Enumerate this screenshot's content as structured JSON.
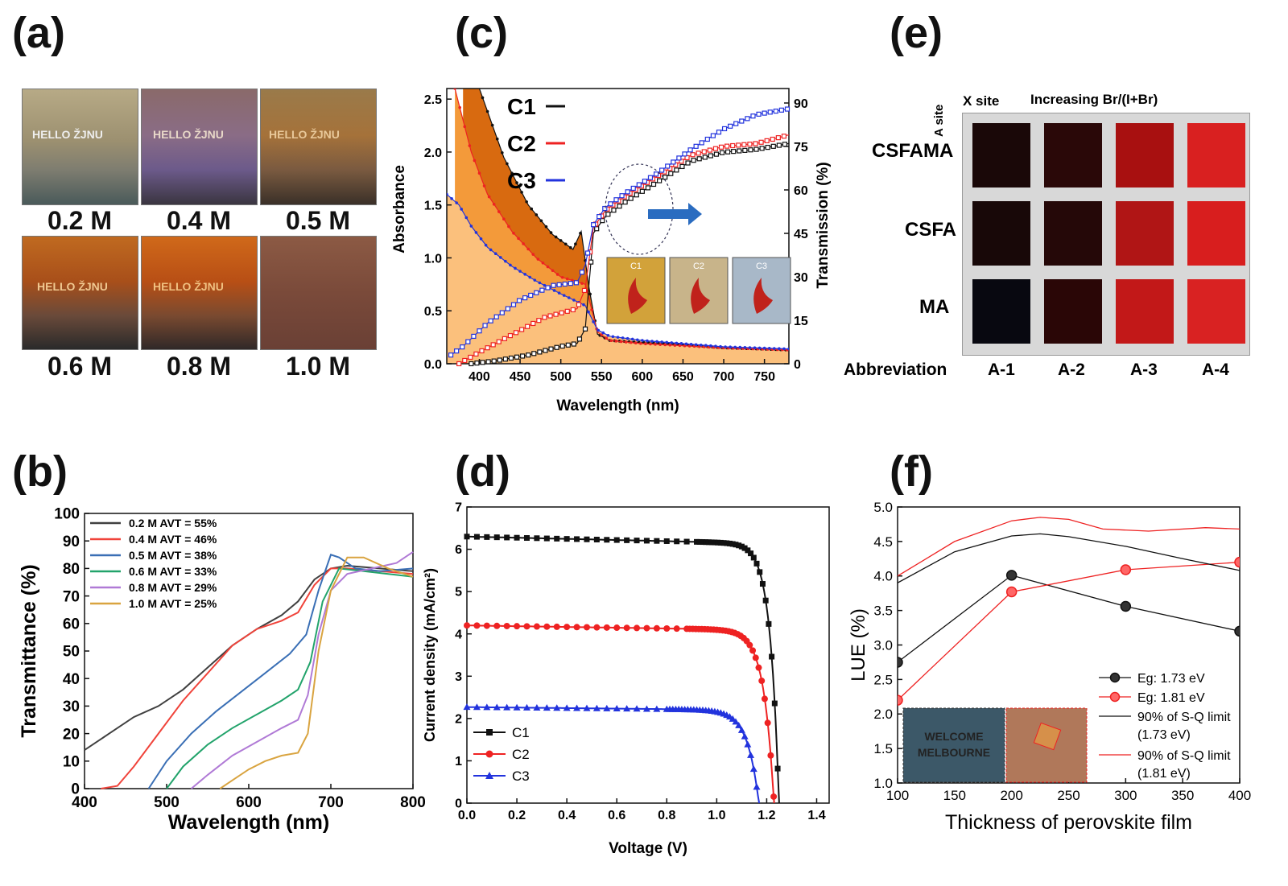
{
  "panels": {
    "a": "(a)",
    "b": "(b)",
    "c": "(c)",
    "d": "(d)",
    "e": "(e)",
    "f": "(f)"
  },
  "panel_a": {
    "labels": [
      "0.2 M",
      "0.4 M",
      "0.5 M",
      "0.6 M",
      "0.8 M",
      "1.0 M"
    ],
    "photo_text": "HELLO ŽJNU"
  },
  "panel_e": {
    "x_site_label": "X site",
    "a_site_label": "A site",
    "increasing_label": "Increasing Br/(I+Br)",
    "rows": [
      "CSFAMA",
      "CSFA",
      "MA"
    ],
    "abbreviation_label": "Abbreviation",
    "columns": [
      "A-1",
      "A-2",
      "A-3",
      "A-4"
    ]
  },
  "colors": {
    "black": "#111111",
    "red": "#ee2222",
    "blue": "#2233dd",
    "orange_light": "#fbc07c",
    "orange_mid": "#f39a3a",
    "orange_dark": "#d86a10",
    "b_0.2": "#404040",
    "b_0.4": "#f0433a",
    "b_0.5": "#3a6fb5",
    "b_0.6": "#22a36b",
    "b_0.8": "#b07ad6",
    "b_1.0": "#d9a440"
  },
  "chart_data": [
    {
      "id": "b",
      "type": "line",
      "xlabel": "Wavelength (nm)",
      "ylabel": "Transmittance (%)",
      "xlim": [
        400,
        800
      ],
      "ylim": [
        0,
        100
      ],
      "xticks": [
        400,
        500,
        600,
        700,
        800
      ],
      "yticks": [
        0,
        10,
        20,
        30,
        40,
        50,
        60,
        70,
        80,
        90,
        100
      ],
      "legend_position": "top-left",
      "series": [
        {
          "name": "0.2 M AVT = 55%",
          "x": [
            400,
            430,
            460,
            490,
            520,
            550,
            580,
            610,
            640,
            660,
            680,
            700,
            720,
            760,
            800
          ],
          "y": [
            14,
            20,
            26,
            30,
            36,
            44,
            52,
            58,
            63,
            68,
            76,
            80,
            81,
            80,
            79
          ]
        },
        {
          "name": "0.4 M AVT = 46%",
          "x": [
            420,
            440,
            460,
            490,
            520,
            550,
            580,
            610,
            640,
            660,
            680,
            700,
            720,
            760,
            800
          ],
          "y": [
            0,
            1,
            8,
            20,
            32,
            42,
            52,
            58,
            61,
            64,
            74,
            80,
            80,
            79,
            78
          ]
        },
        {
          "name": "0.5 M AVT = 38%",
          "x": [
            478,
            500,
            530,
            560,
            590,
            620,
            650,
            670,
            685,
            700,
            710,
            730,
            760,
            800
          ],
          "y": [
            0,
            10,
            20,
            28,
            35,
            42,
            49,
            56,
            72,
            85,
            84,
            80,
            79,
            80
          ]
        },
        {
          "name": "0.6 M AVT = 33%",
          "x": [
            500,
            520,
            550,
            580,
            610,
            640,
            660,
            675,
            690,
            710,
            740,
            770,
            800
          ],
          "y": [
            0,
            8,
            16,
            22,
            27,
            32,
            36,
            46,
            68,
            80,
            79,
            78,
            77
          ]
        },
        {
          "name": "0.8 M AVT = 29%",
          "x": [
            530,
            550,
            580,
            610,
            640,
            660,
            672,
            685,
            700,
            720,
            750,
            780,
            800
          ],
          "y": [
            0,
            5,
            12,
            17,
            22,
            25,
            34,
            56,
            72,
            78,
            80,
            82,
            86
          ]
        },
        {
          "name": "1.0 M AVT = 25%",
          "x": [
            565,
            580,
            600,
            620,
            640,
            660,
            672,
            685,
            700,
            720,
            740,
            770,
            800
          ],
          "y": [
            0,
            3,
            7,
            10,
            12,
            13,
            20,
            50,
            72,
            84,
            84,
            80,
            77
          ]
        }
      ]
    },
    {
      "id": "c",
      "type": "line",
      "xlabel": "Wavelength (nm)",
      "ylabel": "Absorbance",
      "y2label": "Transmission (%)",
      "xlim": [
        360,
        780
      ],
      "ylim": [
        0,
        2.6
      ],
      "y2lim": [
        0,
        95
      ],
      "xticks": [
        400,
        450,
        500,
        550,
        600,
        650,
        700,
        750
      ],
      "yticks": [
        0.0,
        0.5,
        1.0,
        1.5,
        2.0,
        2.5
      ],
      "y2ticks": [
        0,
        15,
        30,
        45,
        60,
        75,
        90
      ],
      "legend": [
        "C1",
        "C2",
        "C3"
      ],
      "absorbance": [
        {
          "name": "C1",
          "x": [
            380,
            400,
            430,
            460,
            490,
            515,
            525,
            535,
            545,
            560,
            600,
            650,
            700,
            780
          ],
          "y": [
            4.0,
            2.6,
            1.95,
            1.5,
            1.22,
            1.08,
            1.25,
            0.7,
            0.28,
            0.22,
            0.2,
            0.18,
            0.15,
            0.13
          ]
        },
        {
          "name": "C2",
          "x": [
            370,
            390,
            410,
            440,
            470,
            500,
            530,
            545,
            560,
            600,
            650,
            700,
            780
          ],
          "y": [
            2.6,
            2.0,
            1.6,
            1.25,
            1.0,
            0.82,
            0.75,
            0.3,
            0.22,
            0.19,
            0.17,
            0.15,
            0.13
          ]
        },
        {
          "name": "C3",
          "x": [
            360,
            375,
            390,
            410,
            440,
            470,
            500,
            530,
            545,
            560,
            600,
            650,
            700,
            780
          ],
          "y": [
            1.6,
            1.5,
            1.3,
            1.1,
            0.92,
            0.78,
            0.66,
            0.55,
            0.32,
            0.26,
            0.22,
            0.19,
            0.16,
            0.14
          ]
        }
      ],
      "transmission": [
        {
          "name": "C1",
          "x": [
            390,
            420,
            460,
            500,
            520,
            530,
            540,
            555,
            580,
            620,
            660,
            700,
            740,
            780
          ],
          "y": [
            0,
            1,
            3,
            6,
            7,
            12,
            45,
            51,
            56,
            63,
            70,
            73,
            74,
            76
          ]
        },
        {
          "name": "C2",
          "x": [
            375,
            400,
            440,
            480,
            520,
            530,
            540,
            555,
            580,
            620,
            660,
            700,
            740,
            780
          ],
          "y": [
            0,
            4,
            10,
            16,
            19,
            26,
            47,
            53,
            58,
            65,
            72,
            75,
            76,
            79
          ]
        },
        {
          "name": "C3",
          "x": [
            365,
            380,
            410,
            450,
            490,
            520,
            530,
            540,
            555,
            580,
            620,
            660,
            700,
            740,
            780
          ],
          "y": [
            3,
            6,
            14,
            22,
            27,
            28,
            34,
            48,
            54,
            59,
            66,
            74,
            81,
            86,
            88
          ]
        }
      ],
      "inset_labels": [
        "C1",
        "C2",
        "C3"
      ]
    },
    {
      "id": "d",
      "type": "line",
      "xlabel": "Voltage (V)",
      "ylabel": "Current density (mA/cm²)",
      "xlim": [
        0.0,
        1.45
      ],
      "ylim": [
        0,
        7
      ],
      "xticks": [
        0.0,
        0.2,
        0.4,
        0.6,
        0.8,
        1.0,
        1.2,
        1.4
      ],
      "yticks": [
        0,
        1,
        2,
        3,
        4,
        5,
        6,
        7
      ],
      "legend_position": "bottom-left",
      "series": [
        {
          "name": "C1",
          "jsc": 6.3,
          "voc": 1.25,
          "slope": 0.45,
          "knee": 0.9,
          "n": 0.035
        },
        {
          "name": "C2",
          "jsc": 4.2,
          "voc": 1.23,
          "slope": 0.3,
          "knee": 0.88,
          "n": 0.04
        },
        {
          "name": "C3",
          "jsc": 2.27,
          "voc": 1.17,
          "slope": 0.2,
          "knee": 0.8,
          "n": 0.045
        }
      ]
    },
    {
      "id": "f",
      "type": "line",
      "xlabel": "Thickness of perovskite film",
      "ylabel": "LUE (%)",
      "xlim": [
        100,
        400
      ],
      "ylim": [
        1.0,
        5.0
      ],
      "xticks": [
        100,
        150,
        200,
        250,
        300,
        350,
        400
      ],
      "yticks": [
        1.0,
        1.5,
        2.0,
        2.5,
        3.0,
        3.5,
        4.0,
        4.5,
        5.0
      ],
      "legend_position": "bottom-right",
      "series": [
        {
          "name": "Eg: 1.73 eV",
          "x": [
            100,
            200,
            300,
            400
          ],
          "y": [
            2.75,
            4.01,
            3.56,
            3.2
          ],
          "markers": true
        },
        {
          "name": "Eg: 1.81 eV",
          "x": [
            100,
            200,
            300,
            400
          ],
          "y": [
            2.2,
            3.77,
            4.09,
            4.2
          ],
          "markers": true
        },
        {
          "name": "90% of S-Q limit",
          "name2": "(1.73 eV)",
          "x": [
            100,
            150,
            200,
            225,
            250,
            300,
            350,
            400
          ],
          "y": [
            3.9,
            4.35,
            4.58,
            4.61,
            4.57,
            4.43,
            4.25,
            4.08
          ],
          "markers": false
        },
        {
          "name": "90% of S-Q limit",
          "name2": "(1.81 eV)",
          "x": [
            100,
            150,
            200,
            225,
            250,
            280,
            320,
            370,
            400
          ],
          "y": [
            4.0,
            4.5,
            4.8,
            4.85,
            4.82,
            4.68,
            4.65,
            4.7,
            4.68
          ],
          "markers": false
        }
      ],
      "inset_text": "WELCOME MELBOURNE"
    }
  ]
}
